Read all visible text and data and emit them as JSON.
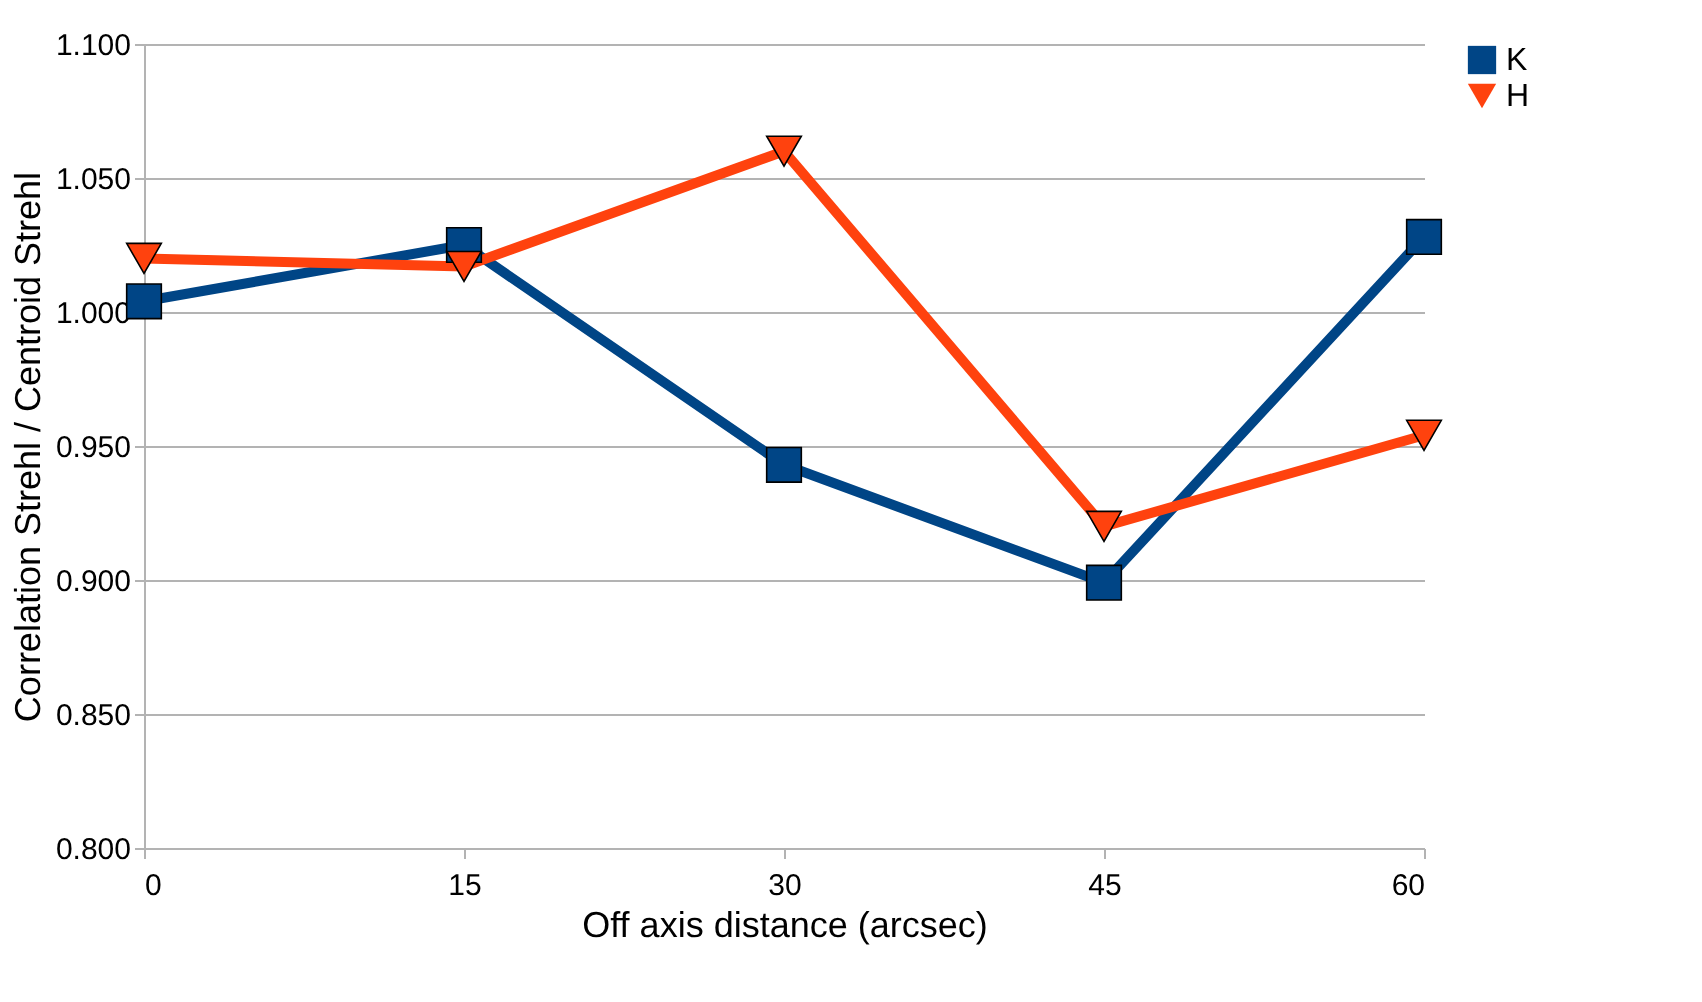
{
  "chart_data": {
    "type": "line",
    "xlabel": "Off axis distance (arcsec)",
    "ylabel": "Correlation Strehl / Centroid Strehl",
    "categories": [
      "0",
      "15",
      "30",
      "45",
      "60"
    ],
    "series": [
      {
        "name": "K",
        "color": "#004586",
        "marker": "square",
        "values": [
          1.004,
          1.025,
          0.943,
          0.899,
          1.028
        ]
      },
      {
        "name": "H",
        "color": "#ff420e",
        "marker": "triangle",
        "values": [
          1.02,
          1.017,
          1.06,
          0.92,
          0.954
        ]
      }
    ],
    "ylim": [
      0.8,
      1.1
    ],
    "yticks": [
      {
        "value": 0.8,
        "label": "0.800"
      },
      {
        "value": 0.85,
        "label": "0.850"
      },
      {
        "value": 0.9,
        "label": "0.900"
      },
      {
        "value": 0.95,
        "label": "0.950"
      },
      {
        "value": 1.0,
        "label": "1.000"
      },
      {
        "value": 1.05,
        "label": "1.050"
      },
      {
        "value": 1.1,
        "label": "1.100"
      }
    ],
    "grid": "y",
    "legend": "right",
    "line_style": "solid"
  }
}
